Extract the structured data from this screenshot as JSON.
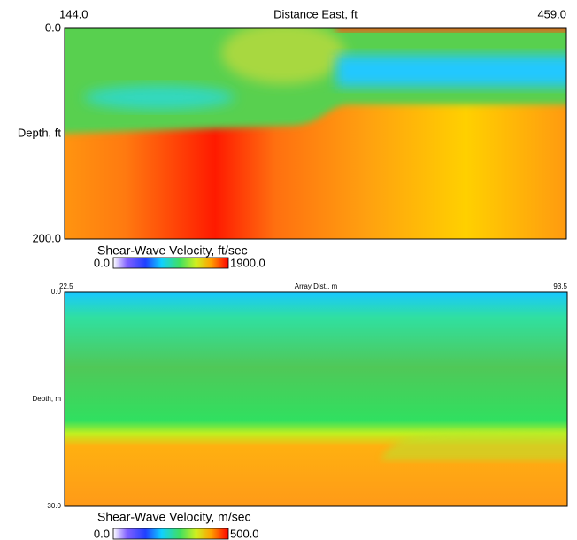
{
  "chart_data": [
    {
      "type": "heatmap",
      "xlabel": "Distance East, ft",
      "ylabel": "Depth, ft",
      "xlim": [
        144,
        459
      ],
      "xticks": [
        {
          "value": 144,
          "label": "144.0"
        },
        {
          "value": 459,
          "label": "459.0"
        }
      ],
      "ylim": [
        0,
        200
      ],
      "yticks": [
        {
          "value": 0,
          "label": "0.0"
        },
        {
          "value": 200,
          "label": "200.0"
        }
      ],
      "colorbar_label": "Shear-Wave Velocity, ft/sec",
      "clim": [
        0,
        1900
      ],
      "cticks": [
        {
          "value": 0,
          "label": "0.0"
        },
        {
          "value": 1900,
          "label": "1900.0"
        }
      ]
    },
    {
      "type": "heatmap",
      "xlabel": "Array Dist., m",
      "ylabel": "Depth, m",
      "xlim": [
        22.5,
        93.5
      ],
      "xticks": [
        22.5,
        93.5
      ],
      "ylim": [
        0,
        30
      ],
      "yticks": [
        {
          "value": 0,
          "label": "0.0"
        },
        {
          "value": 30,
          "label": "30.0"
        }
      ],
      "colorbar_label": "Shear-Wave Velocity, m/sec",
      "clim": [
        0,
        500
      ],
      "cticks": [
        {
          "value": 0,
          "label": "0.0"
        },
        {
          "value": 500,
          "label": "500.0"
        }
      ]
    }
  ]
}
